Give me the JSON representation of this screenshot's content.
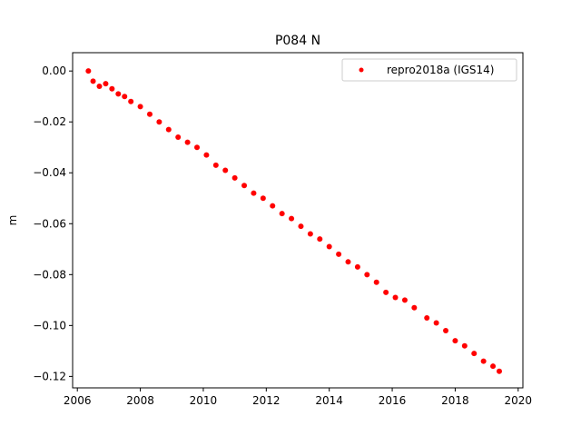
{
  "chart_data": {
    "type": "scatter",
    "title": "P084 N",
    "xlabel": "",
    "ylabel": "m",
    "xlim": [
      2005.85,
      2020.15
    ],
    "ylim": [
      -0.1245,
      0.0072
    ],
    "x_ticks": [
      2006,
      2008,
      2010,
      2012,
      2014,
      2016,
      2018,
      2020
    ],
    "x_tick_labels": [
      "2006",
      "2008",
      "2010",
      "2012",
      "2014",
      "2016",
      "2018",
      "2020"
    ],
    "y_ticks": [
      0.0,
      -0.02,
      -0.04,
      -0.06,
      -0.08,
      -0.1,
      -0.12
    ],
    "y_tick_labels": [
      "0.00",
      "−0.02",
      "−0.04",
      "−0.06",
      "−0.08",
      "−0.10",
      "−0.12"
    ],
    "grid": false,
    "legend_position": "upper right",
    "series": [
      {
        "name": "repro2018a (IGS14)",
        "color": "#ff0000",
        "marker": "circle",
        "x": [
          2006.35,
          2006.5,
          2006.7,
          2006.9,
          2007.1,
          2007.3,
          2007.5,
          2007.7,
          2008.0,
          2008.3,
          2008.6,
          2008.9,
          2009.2,
          2009.5,
          2009.8,
          2010.1,
          2010.4,
          2010.7,
          2011.0,
          2011.3,
          2011.6,
          2011.9,
          2012.2,
          2012.5,
          2012.8,
          2013.1,
          2013.4,
          2013.7,
          2014.0,
          2014.3,
          2014.6,
          2014.9,
          2015.2,
          2015.5,
          2015.8,
          2016.1,
          2016.4,
          2016.7,
          2017.1,
          2017.4,
          2017.7,
          2018.0,
          2018.3,
          2018.6,
          2018.9,
          2019.2,
          2019.4
        ],
        "y": [
          0.0,
          -0.004,
          -0.006,
          -0.005,
          -0.007,
          -0.009,
          -0.01,
          -0.012,
          -0.014,
          -0.017,
          -0.02,
          -0.023,
          -0.026,
          -0.028,
          -0.03,
          -0.033,
          -0.037,
          -0.039,
          -0.042,
          -0.045,
          -0.048,
          -0.05,
          -0.053,
          -0.056,
          -0.058,
          -0.061,
          -0.064,
          -0.066,
          -0.069,
          -0.072,
          -0.075,
          -0.077,
          -0.08,
          -0.083,
          -0.087,
          -0.089,
          -0.09,
          -0.093,
          -0.097,
          -0.099,
          -0.102,
          -0.106,
          -0.108,
          -0.111,
          -0.114,
          -0.116,
          -0.118
        ]
      }
    ]
  }
}
